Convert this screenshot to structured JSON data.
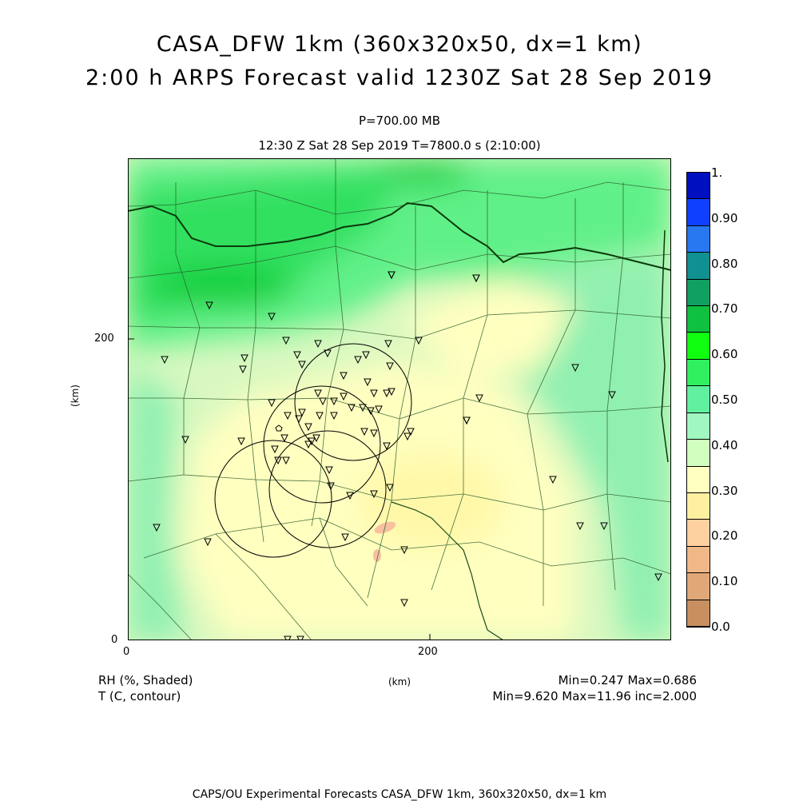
{
  "title": {
    "line1": "CASA_DFW 1km (360x320x50, dx=1 km)",
    "line2": "2:00 h ARPS Forecast valid 1230Z Sat 28 Sep 2019"
  },
  "level": "P=700.00 MB",
  "time_info": "12:30 Z Sat 28 Sep 2019   T=7800.0 s (2:10:00)",
  "axes": {
    "y_ticks": [
      "200",
      "0"
    ],
    "x_ticks": [
      "0",
      "200"
    ],
    "y_unit": "(km)",
    "x_unit": "(km)"
  },
  "legend": {
    "shaded_label": "RH (%, Shaded)",
    "contour_label": "T (C, contour)",
    "rh_stats": "Min=0.247 Max=0.686",
    "t_stats": "Min=9.620 Max=11.96 inc=2.000"
  },
  "colorbar": {
    "labels": [
      "1.",
      "0.90",
      "0.80",
      "0.70",
      "0.60",
      "0.50",
      "0.40",
      "0.30",
      "0.20",
      "0.10",
      "0.0"
    ],
    "colors": [
      "#0010c0",
      "#1040ff",
      "#2878f0",
      "#109090",
      "#10a060",
      "#10c040",
      "#10ff10",
      "#30f060",
      "#60f0a0",
      "#a0f8c0",
      "#d0ffc0",
      "#ffffc0",
      "#fff0a0",
      "#ffd0a0",
      "#f0b888",
      "#e0a878",
      "#c89060"
    ]
  },
  "credit": "CAPS/OU Experimental Forecasts  CASA_DFW 1km, 360x320x50, dx=1 km"
}
